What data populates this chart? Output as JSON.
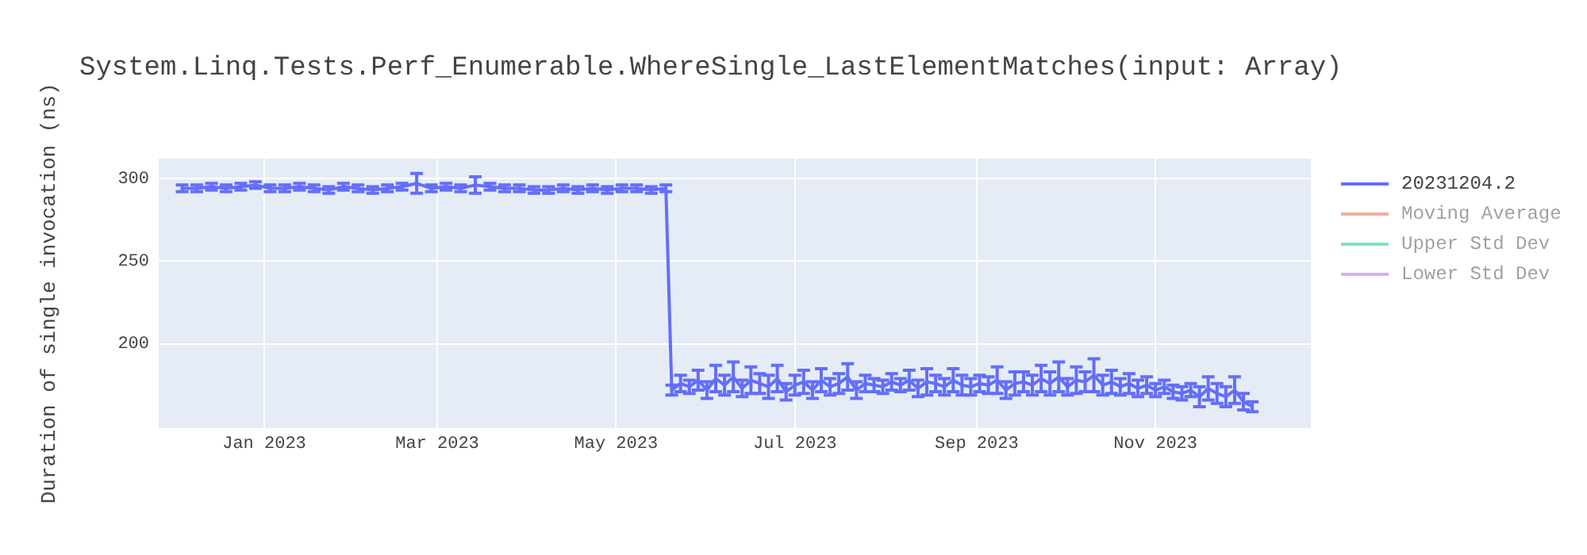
{
  "chart_data": {
    "type": "line",
    "title": "System.Linq.Tests.Perf_Enumerable.WhereSingle_LastElementMatches(input: Array)",
    "ylabel": "Duration of single invocation (ns)",
    "xlim": [
      "2022-11-26",
      "2023-12-24"
    ],
    "xticks": [
      {
        "value": "2023-01-01",
        "label": "Jan 2023"
      },
      {
        "value": "2023-03-01",
        "label": "Mar 2023"
      },
      {
        "value": "2023-05-01",
        "label": "May 2023"
      },
      {
        "value": "2023-07-01",
        "label": "Jul 2023"
      },
      {
        "value": "2023-09-01",
        "label": "Sep 2023"
      },
      {
        "value": "2023-11-01",
        "label": "Nov 2023"
      }
    ],
    "ylim": [
      149,
      312
    ],
    "yticks": [
      200,
      250,
      300
    ],
    "grid": true,
    "legend": "top right",
    "marker": "none",
    "line_style": "solid",
    "x": [
      "2022-12-04",
      "2022-12-09",
      "2022-12-14",
      "2022-12-19",
      "2022-12-24",
      "2022-12-29",
      "2023-01-03",
      "2023-01-08",
      "2023-01-13",
      "2023-01-18",
      "2023-01-23",
      "2023-01-28",
      "2023-02-02",
      "2023-02-07",
      "2023-02-12",
      "2023-02-17",
      "2023-02-22",
      "2023-02-27",
      "2023-03-04",
      "2023-03-09",
      "2023-03-14",
      "2023-03-19",
      "2023-03-24",
      "2023-03-29",
      "2023-04-03",
      "2023-04-08",
      "2023-04-13",
      "2023-04-18",
      "2023-04-23",
      "2023-04-28",
      "2023-05-03",
      "2023-05-08",
      "2023-05-13",
      "2023-05-18",
      "2023-05-20",
      "2023-05-23",
      "2023-05-26",
      "2023-05-29",
      "2023-06-01",
      "2023-06-04",
      "2023-06-07",
      "2023-06-10",
      "2023-06-13",
      "2023-06-16",
      "2023-06-19",
      "2023-06-22",
      "2023-06-25",
      "2023-06-28",
      "2023-07-01",
      "2023-07-04",
      "2023-07-07",
      "2023-07-10",
      "2023-07-13",
      "2023-07-16",
      "2023-07-19",
      "2023-07-22",
      "2023-07-25",
      "2023-07-28",
      "2023-07-31",
      "2023-08-03",
      "2023-08-06",
      "2023-08-09",
      "2023-08-12",
      "2023-08-15",
      "2023-08-18",
      "2023-08-21",
      "2023-08-24",
      "2023-08-27",
      "2023-08-30",
      "2023-09-02",
      "2023-09-05",
      "2023-09-08",
      "2023-09-11",
      "2023-09-14",
      "2023-09-17",
      "2023-09-20",
      "2023-09-23",
      "2023-09-26",
      "2023-09-29",
      "2023-10-02",
      "2023-10-05",
      "2023-10-08",
      "2023-10-11",
      "2023-10-14",
      "2023-10-17",
      "2023-10-20",
      "2023-10-23",
      "2023-10-26",
      "2023-10-29",
      "2023-11-01",
      "2023-11-04",
      "2023-11-07",
      "2023-11-10",
      "2023-11-13",
      "2023-11-16",
      "2023-11-19",
      "2023-11-22",
      "2023-11-25",
      "2023-11-28",
      "2023-12-01",
      "2023-12-04"
    ],
    "series": [
      {
        "name": "20231204.2",
        "color": "#636efa",
        "values": [
          294,
          294,
          295,
          294,
          295,
          296,
          294,
          294,
          295,
          294,
          293,
          295,
          294,
          293,
          294,
          295,
          297,
          294,
          295,
          294,
          296,
          295,
          294,
          294,
          293,
          293,
          294,
          293,
          294,
          293,
          294,
          294,
          293,
          294,
          172,
          176,
          174,
          178,
          172,
          179,
          175,
          180,
          173,
          178,
          176,
          174,
          179,
          171,
          175,
          177,
          172,
          178,
          174,
          176,
          180,
          172,
          176,
          175,
          174,
          177,
          175,
          178,
          173,
          177,
          176,
          174,
          178,
          175,
          174,
          176,
          175,
          178,
          172,
          176,
          177,
          175,
          179,
          176,
          180,
          174,
          178,
          177,
          181,
          175,
          177,
          174,
          176,
          173,
          175,
          172,
          174,
          171,
          170,
          172,
          168,
          173,
          170,
          168,
          172,
          165,
          162
        ],
        "errors": [
          2,
          2,
          2,
          2,
          2,
          2,
          2,
          2,
          2,
          2,
          2,
          2,
          2,
          2,
          2,
          2,
          6,
          2,
          2,
          2,
          5,
          2,
          2,
          2,
          2,
          2,
          2,
          2,
          2,
          2,
          2,
          2,
          2,
          2,
          3,
          5,
          4,
          6,
          5,
          8,
          6,
          9,
          5,
          8,
          6,
          7,
          8,
          5,
          6,
          7,
          5,
          7,
          5,
          6,
          8,
          5,
          5,
          4,
          4,
          5,
          4,
          6,
          5,
          8,
          5,
          5,
          7,
          6,
          5,
          5,
          5,
          8,
          5,
          7,
          6,
          6,
          8,
          7,
          9,
          5,
          8,
          6,
          10,
          6,
          7,
          5,
          6,
          5,
          5,
          4,
          4,
          4,
          4,
          4,
          6,
          7,
          6,
          6,
          8,
          5,
          3
        ]
      },
      {
        "name": "Moving Average",
        "color": "#ef553b",
        "values": [
          null,
          null,
          null,
          null,
          null,
          null,
          null,
          null,
          null,
          null,
          null,
          null,
          null,
          null,
          null,
          null,
          null,
          null,
          null,
          null,
          null,
          null,
          null,
          null,
          null,
          null,
          null,
          null,
          null,
          null,
          null,
          null,
          null,
          null,
          null,
          null,
          null,
          null,
          null,
          null,
          null,
          null,
          null,
          null,
          null,
          null,
          null,
          null,
          null,
          null,
          null,
          null,
          null,
          null,
          null,
          null,
          null,
          null,
          null,
          null,
          null,
          null,
          null,
          null,
          null,
          null,
          null,
          null,
          null,
          null,
          null,
          null,
          null,
          null,
          null,
          null,
          null,
          null,
          null,
          null,
          null,
          null,
          null,
          null,
          null,
          null,
          null,
          null,
          null,
          null,
          null,
          null,
          null,
          null,
          null,
          null,
          null,
          null,
          null,
          null,
          null
        ]
      },
      {
        "name": "Upper Std Dev",
        "color": "#00cc96",
        "values": [
          null,
          null,
          null,
          null,
          null,
          null,
          null,
          null,
          null,
          null,
          null,
          null,
          null,
          null,
          null,
          null,
          null,
          null,
          null,
          null,
          null,
          null,
          null,
          null,
          null,
          null,
          null,
          null,
          null,
          null,
          null,
          null,
          null,
          null,
          null,
          null,
          null,
          null,
          null,
          null,
          null,
          null,
          null,
          null,
          null,
          null,
          null,
          null,
          null,
          null,
          null,
          null,
          null,
          null,
          null,
          null,
          null,
          null,
          null,
          null,
          null,
          null,
          null,
          null,
          null,
          null,
          null,
          null,
          null,
          null,
          null,
          null,
          null,
          null,
          null,
          null,
          null,
          null,
          null,
          null,
          null,
          null,
          null,
          null,
          null,
          null,
          null,
          null,
          null,
          null,
          null,
          null,
          null,
          null,
          null,
          null,
          null,
          null,
          null,
          null,
          null
        ]
      },
      {
        "name": "Lower Std Dev",
        "color": "#ab63fa",
        "values": [
          null,
          null,
          null,
          null,
          null,
          null,
          null,
          null,
          null,
          null,
          null,
          null,
          null,
          null,
          null,
          null,
          null,
          null,
          null,
          null,
          null,
          null,
          null,
          null,
          null,
          null,
          null,
          null,
          null,
          null,
          null,
          null,
          null,
          null,
          null,
          null,
          null,
          null,
          null,
          null,
          null,
          null,
          null,
          null,
          null,
          null,
          null,
          null,
          null,
          null,
          null,
          null,
          null,
          null,
          null,
          null,
          null,
          null,
          null,
          null,
          null,
          null,
          null,
          null,
          null,
          null,
          null,
          null,
          null,
          null,
          null,
          null,
          null,
          null,
          null,
          null,
          null,
          null,
          null,
          null,
          null,
          null,
          null,
          null,
          null,
          null,
          null,
          null,
          null,
          null,
          null,
          null,
          null,
          null,
          null,
          null,
          null,
          null,
          null,
          null,
          null
        ]
      }
    ]
  }
}
